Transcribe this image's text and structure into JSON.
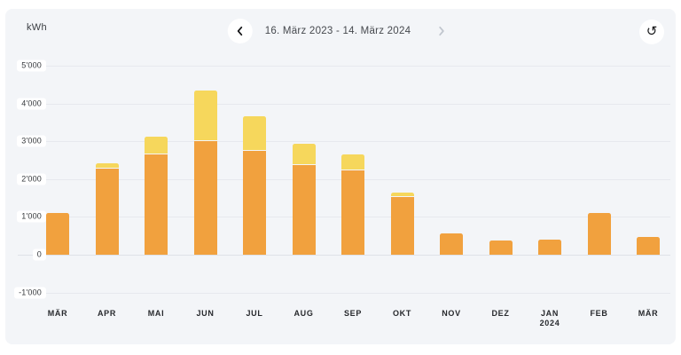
{
  "unit_label": "kWh",
  "header": {
    "date_range": "16. März 2023 - 14. März 2024",
    "prev_icon": "chevron-left",
    "next_icon": "chevron-right",
    "reset_icon": "reset-counterclockwise",
    "reset_glyph": "↺"
  },
  "colors": {
    "card_background": "#f3f5f8",
    "gridline": "#e7e9ee",
    "bar_orange": "#F1A13E",
    "bar_yellow": "#F6D75C",
    "chevron_active": "#17181a",
    "chevron_disabled": "#c0c6ce"
  },
  "chart_data": {
    "type": "bar",
    "stacked": true,
    "unit": "kWh",
    "grid": true,
    "legend": "none",
    "categories": [
      {
        "label": "MÄR",
        "sublabel": ""
      },
      {
        "label": "APR",
        "sublabel": ""
      },
      {
        "label": "MAI",
        "sublabel": ""
      },
      {
        "label": "JUN",
        "sublabel": ""
      },
      {
        "label": "JUL",
        "sublabel": ""
      },
      {
        "label": "AUG",
        "sublabel": ""
      },
      {
        "label": "SEP",
        "sublabel": ""
      },
      {
        "label": "OKT",
        "sublabel": ""
      },
      {
        "label": "NOV",
        "sublabel": ""
      },
      {
        "label": "DEZ",
        "sublabel": ""
      },
      {
        "label": "JAN",
        "sublabel": "2024"
      },
      {
        "label": "FEB",
        "sublabel": ""
      },
      {
        "label": "MÄR",
        "sublabel": ""
      }
    ],
    "series": [
      {
        "name": "consumption-orange",
        "color": "#F1A13E",
        "values": [
          1100,
          2280,
          2650,
          3000,
          2750,
          2370,
          2240,
          1530,
          560,
          380,
          400,
          1100,
          470
        ]
      },
      {
        "name": "consumption-yellow",
        "color": "#F6D75C",
        "values": [
          0,
          110,
          450,
          1320,
          890,
          540,
          390,
          90,
          0,
          0,
          0,
          0,
          0
        ]
      }
    ],
    "totals": [
      1100,
      2390,
      3100,
      4320,
      3640,
      2910,
      2630,
      1620,
      560,
      380,
      400,
      1100,
      470
    ],
    "y_axis": {
      "min": -1000,
      "max": 5000,
      "ticks": [
        {
          "value": 5000,
          "label": "5'000"
        },
        {
          "value": 4000,
          "label": "4'000"
        },
        {
          "value": 3000,
          "label": "3'000"
        },
        {
          "value": 2000,
          "label": "2'000"
        },
        {
          "value": 1000,
          "label": "1'000"
        },
        {
          "value": 0,
          "label": "0"
        },
        {
          "value": -1000,
          "label": "-1'000"
        }
      ]
    }
  }
}
